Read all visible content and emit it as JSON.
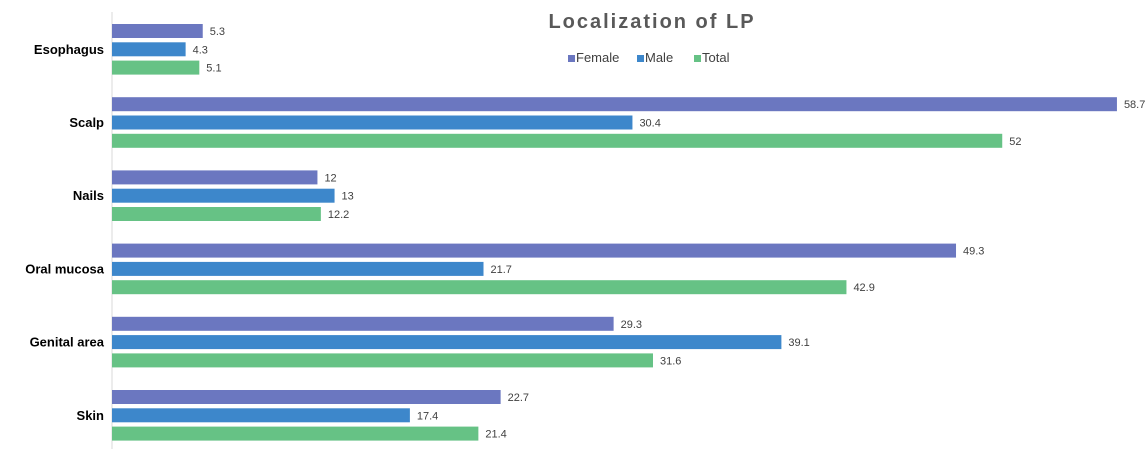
{
  "chart_data": {
    "type": "bar",
    "orientation": "horizontal",
    "title": "Localization of LP",
    "categories": [
      "Esophagus",
      "Scalp",
      "Nails",
      "Oral mucosa",
      "Genital area",
      "Skin"
    ],
    "series": [
      {
        "name": "Female",
        "color": "#6b77c0",
        "values": [
          5.3,
          58.7,
          12,
          49.3,
          29.3,
          22.7
        ]
      },
      {
        "name": "Male",
        "color": "#3d87cb",
        "values": [
          4.3,
          30.4,
          13,
          21.7,
          39.1,
          17.4
        ]
      },
      {
        "name": "Total",
        "color": "#66c285",
        "values": [
          5.1,
          52,
          12.2,
          42.9,
          31.6,
          21.4
        ]
      }
    ],
    "xlim": [
      0,
      60
    ],
    "grid": false,
    "legend": "top",
    "data_labels": true
  }
}
